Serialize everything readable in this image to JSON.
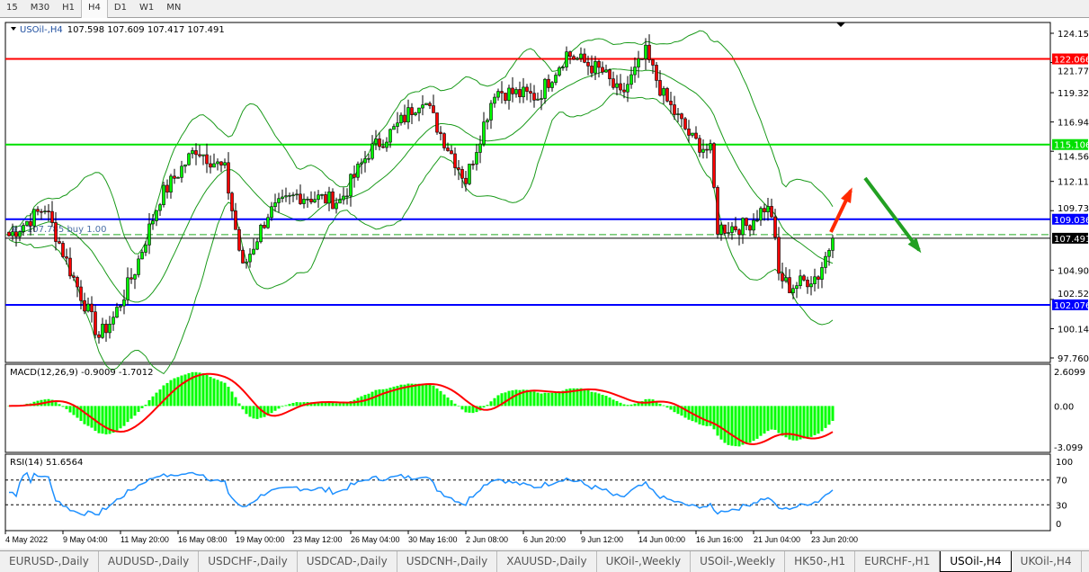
{
  "timeframes": [
    "15",
    "M30",
    "H1",
    "H4",
    "D1",
    "W1",
    "MN"
  ],
  "active_timeframe": "H4",
  "header": {
    "symbol": "USOil-,H4",
    "ohlc": "107.598 107.609 107.417 107.491"
  },
  "order_label": "#1 107.785 buy 1.00",
  "tabs": [
    "EURUSD-,Daily",
    "AUDUSD-,Daily",
    "USDCHF-,Daily",
    "USDCAD-,Daily",
    "USDCNH-,Daily",
    "XAUUSD-,Daily",
    "UKOil-,Weekly",
    "USOil-,Weekly",
    "HK50-,H1",
    "EURCHF-,H1",
    "USOil-,H4",
    "UKOil-,H4"
  ],
  "active_tab": "USOil-,H4",
  "colors": {
    "bull": "#00ff00",
    "bear": "#ff0000",
    "resistance_high": "#ff0000",
    "resistance_mid": "#00e000",
    "level": "#0000ff",
    "bands": "#1a9a1a",
    "macd_hist": "#00ff00",
    "macd_signal": "#ff0000",
    "rsi": "#1e90ff"
  },
  "chart_data": {
    "type": "candlestick",
    "symbol": "USOil-",
    "timeframe": "H4",
    "ylim": [
      97.76,
      124.15
    ],
    "y_ticks": [
      "124.150",
      "121.770",
      "119.320",
      "116.940",
      "114.560",
      "112.110",
      "109.730",
      "104.900",
      "102.520",
      "100.140",
      "97.760"
    ],
    "x_ticks": [
      "4 May 2022",
      "9 May 04:00",
      "11 May 20:00",
      "16 May 08:00",
      "19 May 00:00",
      "23 May 12:00",
      "26 May 04:00",
      "30 May 16:00",
      "2 Jun 08:00",
      "6 Jun 20:00",
      "9 Jun 12:00",
      "14 Jun 00:00",
      "16 Jun 16:00",
      "21 Jun 04:00",
      "23 Jun 20:00"
    ],
    "bars": 230,
    "close_keypoints": [
      [
        0,
        107.7
      ],
      [
        10,
        110
      ],
      [
        17,
        104.9
      ],
      [
        25,
        99.5
      ],
      [
        29,
        101
      ],
      [
        35,
        104.9
      ],
      [
        42,
        110.8
      ],
      [
        52,
        114.8
      ],
      [
        60,
        113
      ],
      [
        65,
        105
      ],
      [
        72,
        109.5
      ],
      [
        80,
        111
      ],
      [
        92,
        110.5
      ],
      [
        100,
        114.5
      ],
      [
        107,
        116.3
      ],
      [
        115,
        119
      ],
      [
        120,
        116
      ],
      [
        127,
        112.2
      ],
      [
        135,
        119.5
      ],
      [
        147,
        119
      ],
      [
        155,
        122.5
      ],
      [
        165,
        121
      ],
      [
        170,
        119
      ],
      [
        177,
        122.5
      ],
      [
        182,
        119
      ],
      [
        190,
        115.5
      ],
      [
        195,
        114.5
      ],
      [
        197,
        108.3
      ],
      [
        205,
        108.5
      ],
      [
        210,
        110
      ],
      [
        212,
        109.5
      ],
      [
        214,
        104.5
      ],
      [
        217,
        103.5
      ],
      [
        225,
        104.5
      ],
      [
        229,
        107.491
      ]
    ],
    "last_close": "107.491",
    "horizontal_levels": [
      {
        "price": "122.066",
        "color": "#ff0000"
      },
      {
        "price": "115.106",
        "color": "#00e000"
      },
      {
        "price": "109.036",
        "color": "#0000ff"
      },
      {
        "price": "102.076",
        "color": "#0000ff"
      }
    ],
    "indicators": {
      "bollinger": {
        "period": 20,
        "deviation": 2
      },
      "macd": {
        "label": "MACD(12,26,9) -0.9009 -1.7012",
        "ylim": [
          -3.099,
          2.6099
        ],
        "ticks": [
          "2.6099",
          "0.00",
          "-3.099"
        ]
      },
      "rsi": {
        "label": "RSI(14) 51.6564",
        "ticks": [
          "100",
          "70",
          "30",
          "0"
        ],
        "levels": [
          70,
          30
        ]
      }
    },
    "annotations": [
      {
        "type": "arrow",
        "color": "#ff2a00",
        "direction": "up"
      },
      {
        "type": "arrow",
        "color": "#22a022",
        "direction": "down"
      }
    ]
  }
}
